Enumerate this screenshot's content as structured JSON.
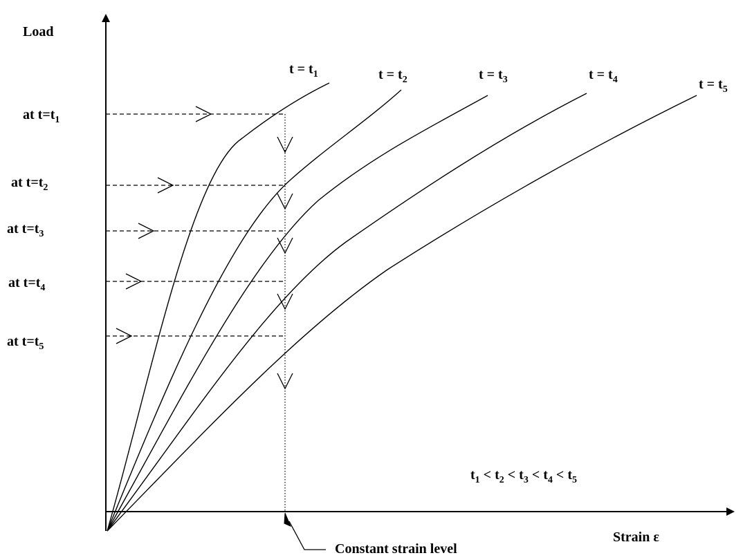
{
  "axes": {
    "y_label": "Load",
    "x_label": "Strain ε"
  },
  "curves": [
    {
      "t": "t = t",
      "sub": "1"
    },
    {
      "t": "t = t",
      "sub": "2"
    },
    {
      "t": "t = t",
      "sub": "3"
    },
    {
      "t": "t = t",
      "sub": "4"
    },
    {
      "t": "t = t",
      "sub": "5"
    }
  ],
  "load_levels": [
    {
      "text": "at t=t",
      "sub": "1"
    },
    {
      "text": "at t=t",
      "sub": "2"
    },
    {
      "text": "at t=t",
      "sub": "3"
    },
    {
      "text": "at t=t",
      "sub": "4"
    },
    {
      "text": "at t=t",
      "sub": "5"
    }
  ],
  "ordering": {
    "terms": [
      "t",
      "t",
      "t",
      "t",
      "t"
    ],
    "subs": [
      "1",
      "2",
      "3",
      "4",
      "5"
    ],
    "sep": " < "
  },
  "constant_strain_label": "Constant strain level"
}
